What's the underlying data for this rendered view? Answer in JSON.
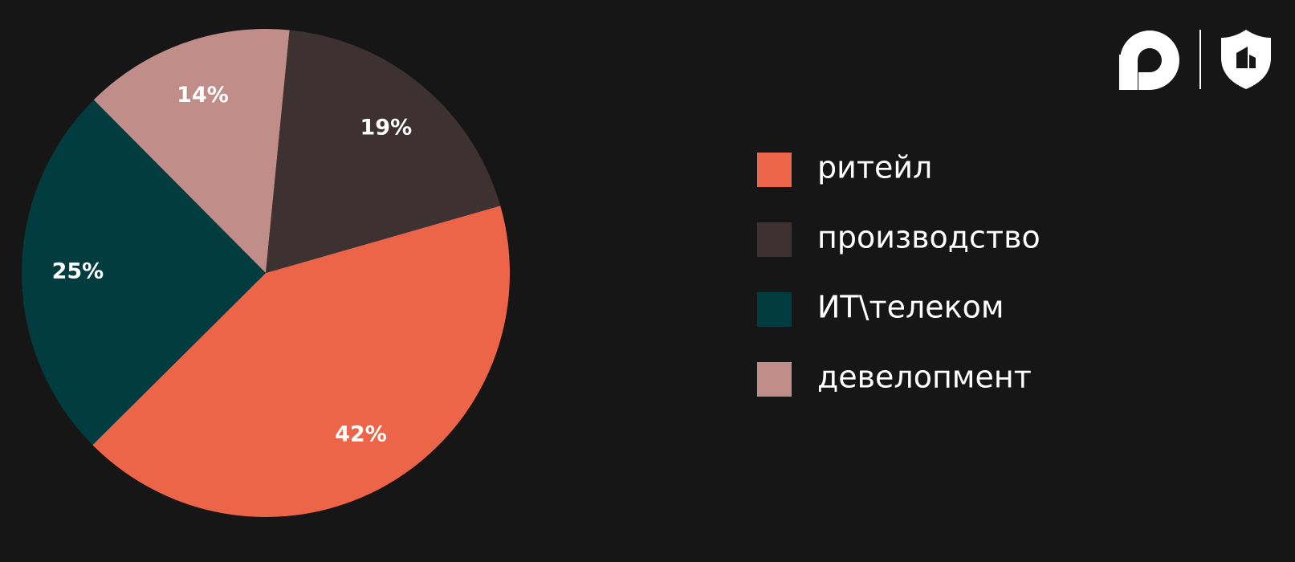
{
  "chart_data": {
    "type": "pie",
    "categories": [
      "ритейл",
      "производство",
      "ИТ\\телеком",
      "девелопмент"
    ],
    "values": [
      42,
      19,
      25,
      14
    ],
    "value_labels": [
      "42%",
      "19%",
      "25%",
      "14%"
    ],
    "colors": [
      "#ec6549",
      "#3d3131",
      "#013c40",
      "#c08d89"
    ],
    "legend": "right"
  }
}
